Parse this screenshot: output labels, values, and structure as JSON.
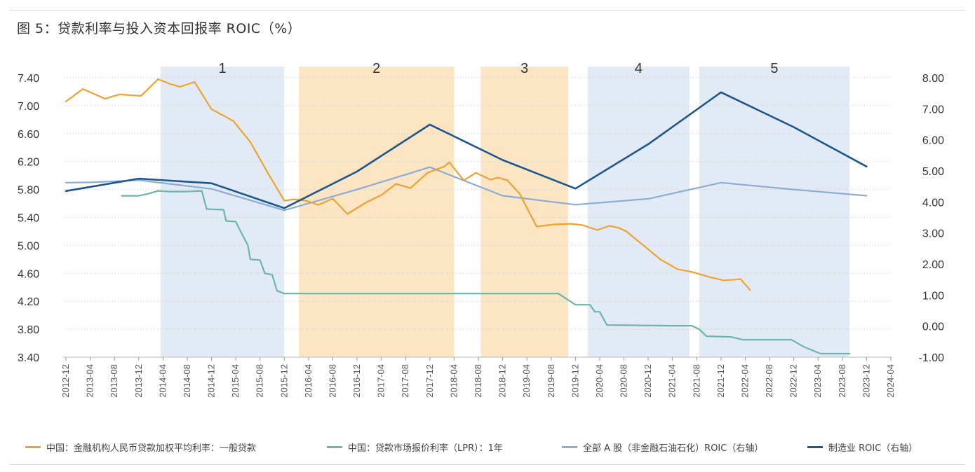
{
  "title": "图 5：贷款利率与投入资本回报率 ROIC（%）",
  "chart_data": {
    "type": "line",
    "title": "图 5：贷款利率与投入资本回报率 ROIC（%）",
    "x": [
      "2012-12",
      "2013-04",
      "2013-08",
      "2013-12",
      "2014-04",
      "2014-08",
      "2014-12",
      "2015-04",
      "2015-08",
      "2015-12",
      "2016-04",
      "2016-08",
      "2016-12",
      "2017-04",
      "2017-08",
      "2017-12",
      "2018-04",
      "2018-08",
      "2018-12",
      "2019-04",
      "2019-08",
      "2019-12",
      "2020-04",
      "2020-08",
      "2020-12",
      "2021-04",
      "2021-08",
      "2021-12",
      "2022-04",
      "2022-08",
      "2022-12",
      "2023-04",
      "2023-08",
      "2023-12",
      "2024-04"
    ],
    "left_axis": {
      "ylim": [
        3.4,
        7.4
      ],
      "ticks": [
        "7.40",
        "7.00",
        "6.60",
        "6.20",
        "5.80",
        "5.40",
        "5.00",
        "4.60",
        "4.20",
        "3.80",
        "3.40"
      ]
    },
    "right_axis": {
      "ylim": [
        -1.0,
        8.0
      ],
      "ticks": [
        "8.00",
        "7.00",
        "6.00",
        "5.00",
        "4.00",
        "3.00",
        "2.00",
        "1.00",
        "0.00",
        "-1.00"
      ]
    },
    "periods": [
      {
        "label": "1",
        "start": 3.9,
        "end": 9.0,
        "color": "#dde8f3"
      },
      {
        "label": "2",
        "start": 9.6,
        "end": 16.0,
        "color": "#fbe1b8"
      },
      {
        "label": "3",
        "start": 17.1,
        "end": 20.7,
        "color": "#fbe1b8"
      },
      {
        "label": "4",
        "start": 21.5,
        "end": 25.7,
        "color": "#dde8f3"
      },
      {
        "label": "5",
        "start": 26.1,
        "end": 32.3,
        "color": "#dde8f3"
      }
    ],
    "series": [
      {
        "name": "中国：金融机构人民币贷款加权平均利率：一般贷款",
        "axis": "left",
        "color": "#f0a22e",
        "points": [
          [
            0,
            7.06
          ],
          [
            0.7,
            7.24
          ],
          [
            1.6,
            7.1
          ],
          [
            2.2,
            7.16
          ],
          [
            3.1,
            7.14
          ],
          [
            3.8,
            7.38
          ],
          [
            4.3,
            7.31
          ],
          [
            4.7,
            7.27
          ],
          [
            5.3,
            7.34
          ],
          [
            6.0,
            6.95
          ],
          [
            6.9,
            6.78
          ],
          [
            7.6,
            6.48
          ],
          [
            8.3,
            6.05
          ],
          [
            9.0,
            5.64
          ],
          [
            9.4,
            5.66
          ],
          [
            9.9,
            5.64
          ],
          [
            10.4,
            5.58
          ],
          [
            11.0,
            5.67
          ],
          [
            11.6,
            5.45
          ],
          [
            12.4,
            5.62
          ],
          [
            13.0,
            5.72
          ],
          [
            13.6,
            5.88
          ],
          [
            14.2,
            5.82
          ],
          [
            14.9,
            6.04
          ],
          [
            15.6,
            6.13
          ],
          [
            15.8,
            6.19
          ],
          [
            16.4,
            5.93
          ],
          [
            16.9,
            6.04
          ],
          [
            17.5,
            5.94
          ],
          [
            17.8,
            5.97
          ],
          [
            18.2,
            5.93
          ],
          [
            18.7,
            5.74
          ],
          [
            19.4,
            5.27
          ],
          [
            20.1,
            5.3
          ],
          [
            20.8,
            5.31
          ],
          [
            21.3,
            5.29
          ],
          [
            21.9,
            5.22
          ],
          [
            22.4,
            5.28
          ],
          [
            22.8,
            5.25
          ],
          [
            23.1,
            5.2
          ],
          [
            23.8,
            5.0
          ],
          [
            24.5,
            4.8
          ],
          [
            25.2,
            4.66
          ],
          [
            25.8,
            4.62
          ],
          [
            26.5,
            4.55
          ],
          [
            27.1,
            4.5
          ],
          [
            27.6,
            4.51
          ],
          [
            27.8,
            4.52
          ],
          [
            28.2,
            4.36
          ]
        ]
      },
      {
        "name": "中国：贷款市场报价利率（LPR）：1年",
        "axis": "left",
        "color": "#6bb6ab",
        "points": [
          [
            2.3,
            5.71
          ],
          [
            3.0,
            5.71
          ],
          [
            3.4,
            5.74
          ],
          [
            3.8,
            5.78
          ],
          [
            4.3,
            5.77
          ],
          [
            4.9,
            5.77
          ],
          [
            5.6,
            5.78
          ],
          [
            5.8,
            5.52
          ],
          [
            6.5,
            5.51
          ],
          [
            6.6,
            5.35
          ],
          [
            7.0,
            5.34
          ],
          [
            7.2,
            5.2
          ],
          [
            7.5,
            5.0
          ],
          [
            7.6,
            4.8
          ],
          [
            8.0,
            4.79
          ],
          [
            8.2,
            4.6
          ],
          [
            8.5,
            4.58
          ],
          [
            8.7,
            4.35
          ],
          [
            9.0,
            4.31
          ],
          [
            20.3,
            4.31
          ],
          [
            21.0,
            4.15
          ],
          [
            21.6,
            4.15
          ],
          [
            21.8,
            4.05
          ],
          [
            22.0,
            4.05
          ],
          [
            22.3,
            3.86
          ],
          [
            24.9,
            3.85
          ],
          [
            25.8,
            3.85
          ],
          [
            26.1,
            3.8
          ],
          [
            26.4,
            3.7
          ],
          [
            27.4,
            3.69
          ],
          [
            27.9,
            3.65
          ],
          [
            28.3,
            3.65
          ],
          [
            29.9,
            3.65
          ],
          [
            30.4,
            3.55
          ],
          [
            31.1,
            3.45
          ],
          [
            32.3,
            3.45
          ]
        ]
      },
      {
        "name": "全部 A 股（非金融石油石化）ROIC（右轴）",
        "axis": "right",
        "color": "#8bacd6",
        "points": [
          [
            0,
            4.62
          ],
          [
            1.0,
            4.63
          ],
          [
            3.0,
            4.7
          ],
          [
            6.0,
            4.42
          ],
          [
            9.0,
            3.73
          ],
          [
            12.0,
            4.4
          ],
          [
            15.0,
            5.12
          ],
          [
            18.0,
            4.2
          ],
          [
            21.0,
            3.91
          ],
          [
            24.0,
            4.1
          ],
          [
            27.0,
            4.62
          ],
          [
            30.0,
            4.4
          ],
          [
            33.0,
            4.2
          ]
        ]
      },
      {
        "name": "制造业 ROIC（右轴）",
        "axis": "right",
        "color": "#1c5690",
        "points": [
          [
            0,
            4.35
          ],
          [
            3.0,
            4.75
          ],
          [
            6.0,
            4.6
          ],
          [
            9.0,
            3.8
          ],
          [
            12.0,
            4.98
          ],
          [
            15.0,
            6.49
          ],
          [
            18.0,
            5.35
          ],
          [
            21.0,
            4.43
          ],
          [
            24.0,
            5.86
          ],
          [
            27.0,
            7.53
          ],
          [
            30.0,
            6.41
          ],
          [
            33.0,
            5.14
          ]
        ]
      }
    ],
    "legend": [
      "中国：金融机构人民币贷款加权平均利率：一般贷款",
      "中国：贷款市场报价利率（LPR）：1年",
      "全部 A 股（非金融石油石化）ROIC（右轴）",
      "制造业 ROIC（右轴）"
    ],
    "legend_position": "bottom",
    "grid": true
  }
}
